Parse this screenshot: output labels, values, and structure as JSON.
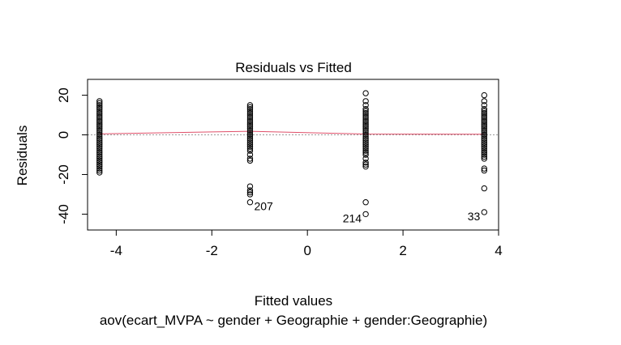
{
  "chart_data": {
    "type": "scatter",
    "title": "Residuals vs Fitted",
    "xlabel": "Fitted values",
    "ylabel": "Residuals",
    "subtitle": "aov(ecart_MVPA ~ gender + Geographie + gender:Geographie)",
    "xlim": [
      -4.6,
      4.0
    ],
    "ylim": [
      -48,
      28
    ],
    "xticks": [
      -4,
      -2,
      0,
      2,
      4
    ],
    "yticks": [
      -40,
      -20,
      0,
      20
    ],
    "grid": false,
    "legend": "none",
    "colors": {
      "points": "#000000",
      "smooth": "#e0506a",
      "zero_line": "#9a9a9a"
    },
    "series": [
      {
        "x": -4.35,
        "y": [
          17,
          16,
          15,
          14,
          13,
          12,
          11,
          10,
          9,
          8,
          7,
          6,
          5,
          4,
          3,
          2,
          1,
          0,
          -1,
          -2,
          -3,
          -4,
          -5,
          -6,
          -7,
          -8,
          -9,
          -10,
          -11,
          -12,
          -13,
          -14,
          -15,
          -16,
          -17,
          -18,
          -19
        ]
      },
      {
        "x": -1.2,
        "y": [
          15,
          14,
          13,
          12,
          11,
          10,
          9,
          8,
          7,
          6,
          5,
          4,
          3,
          2,
          1,
          0,
          -1,
          -2,
          -3,
          -4,
          -5,
          -6,
          -7,
          -8,
          -10,
          -12,
          -13,
          -26,
          -28,
          -29,
          -30,
          -34
        ]
      },
      {
        "x": 1.22,
        "y": [
          21,
          17,
          15,
          13,
          12,
          11,
          10,
          9,
          8,
          7,
          6,
          5,
          4,
          3,
          2,
          1,
          0,
          -1,
          -2,
          -3,
          -4,
          -5,
          -6,
          -7,
          -8,
          -9,
          -10,
          -12,
          -14,
          -15,
          -16,
          -34,
          -40
        ]
      },
      {
        "x": 3.7,
        "y": [
          20,
          17,
          15,
          13,
          12,
          11,
          10,
          9,
          8,
          7,
          6,
          5,
          4,
          3,
          2,
          1,
          0,
          -1,
          -2,
          -3,
          -4,
          -5,
          -6,
          -7,
          -8,
          -9,
          -10,
          -11,
          -12,
          -17,
          -18,
          -27,
          -39
        ]
      }
    ],
    "smooth": {
      "x": [
        -4.35,
        -1.2,
        1.22,
        3.7
      ],
      "y": [
        0.5,
        1.8,
        0.4,
        0.3
      ]
    },
    "zero_line": 0,
    "annotations": [
      {
        "text": "207",
        "x": -1.2,
        "y": -34,
        "side": "right"
      },
      {
        "text": "214",
        "x": 1.22,
        "y": -40,
        "side": "left"
      },
      {
        "text": "33",
        "x": 3.7,
        "y": -39,
        "side": "left"
      }
    ]
  }
}
